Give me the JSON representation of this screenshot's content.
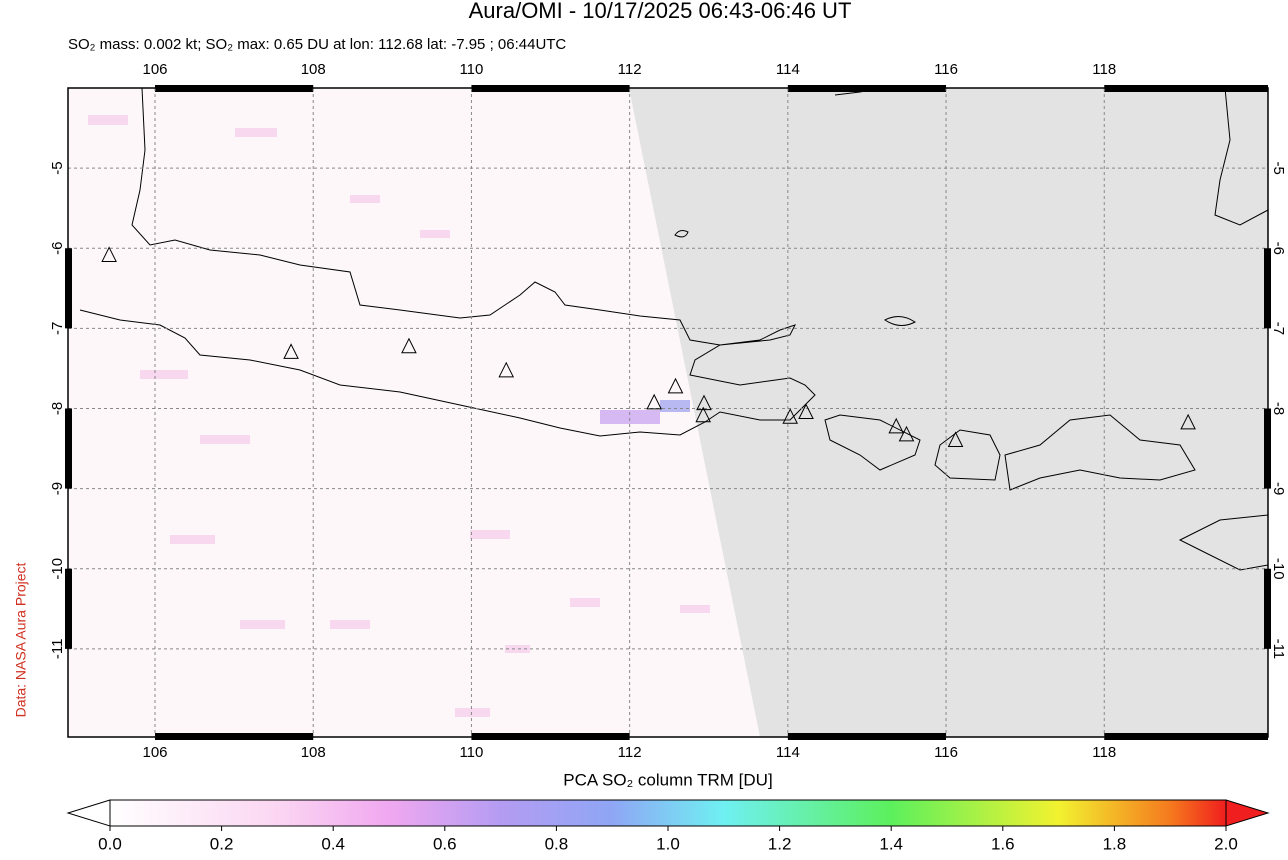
{
  "chart_data": {
    "type": "map",
    "title": "Aura/OMI - 10/17/2025 06:43-06:46 UT",
    "subtitle": "SO₂ mass: 0.002 kt; SO₂ max: 0.65 DU at lon: 112.68 lat: -7.95 ; 06:44UTC",
    "side_note": "Data: NASA Aura Project",
    "xlim": [
      104.9,
      120.07
    ],
    "ylim": [
      -12.1,
      -4.0
    ],
    "xticks": [
      106,
      108,
      110,
      112,
      114,
      116,
      118
    ],
    "yticks": [
      -5,
      -6,
      -7,
      -8,
      -9,
      -10,
      -11
    ],
    "grid": true,
    "volcano_lon": [
      105.42,
      107.72,
      109.21,
      110.44,
      112.31,
      112.58,
      112.94,
      112.93,
      114.03,
      114.23,
      115.37,
      115.5,
      116.12,
      119.06
    ],
    "volcano_lat": [
      -6.09,
      -7.3,
      -7.23,
      -7.53,
      -7.93,
      -7.73,
      -7.94,
      -8.09,
      -8.11,
      -8.05,
      -8.23,
      -8.33,
      -8.4,
      -8.18
    ],
    "colorbar": {
      "label": "PCA SO₂ column TRM [DU]",
      "lim": [
        0,
        2
      ],
      "ticks": [
        {
          "value": 0,
          "label": "0.0"
        },
        0.2,
        0.4,
        0.6,
        0.8,
        {
          "value": 1,
          "label": "1.0"
        },
        1.2,
        1.4,
        1.6,
        1.8,
        {
          "value": 2,
          "label": "2.0"
        }
      ]
    }
  }
}
